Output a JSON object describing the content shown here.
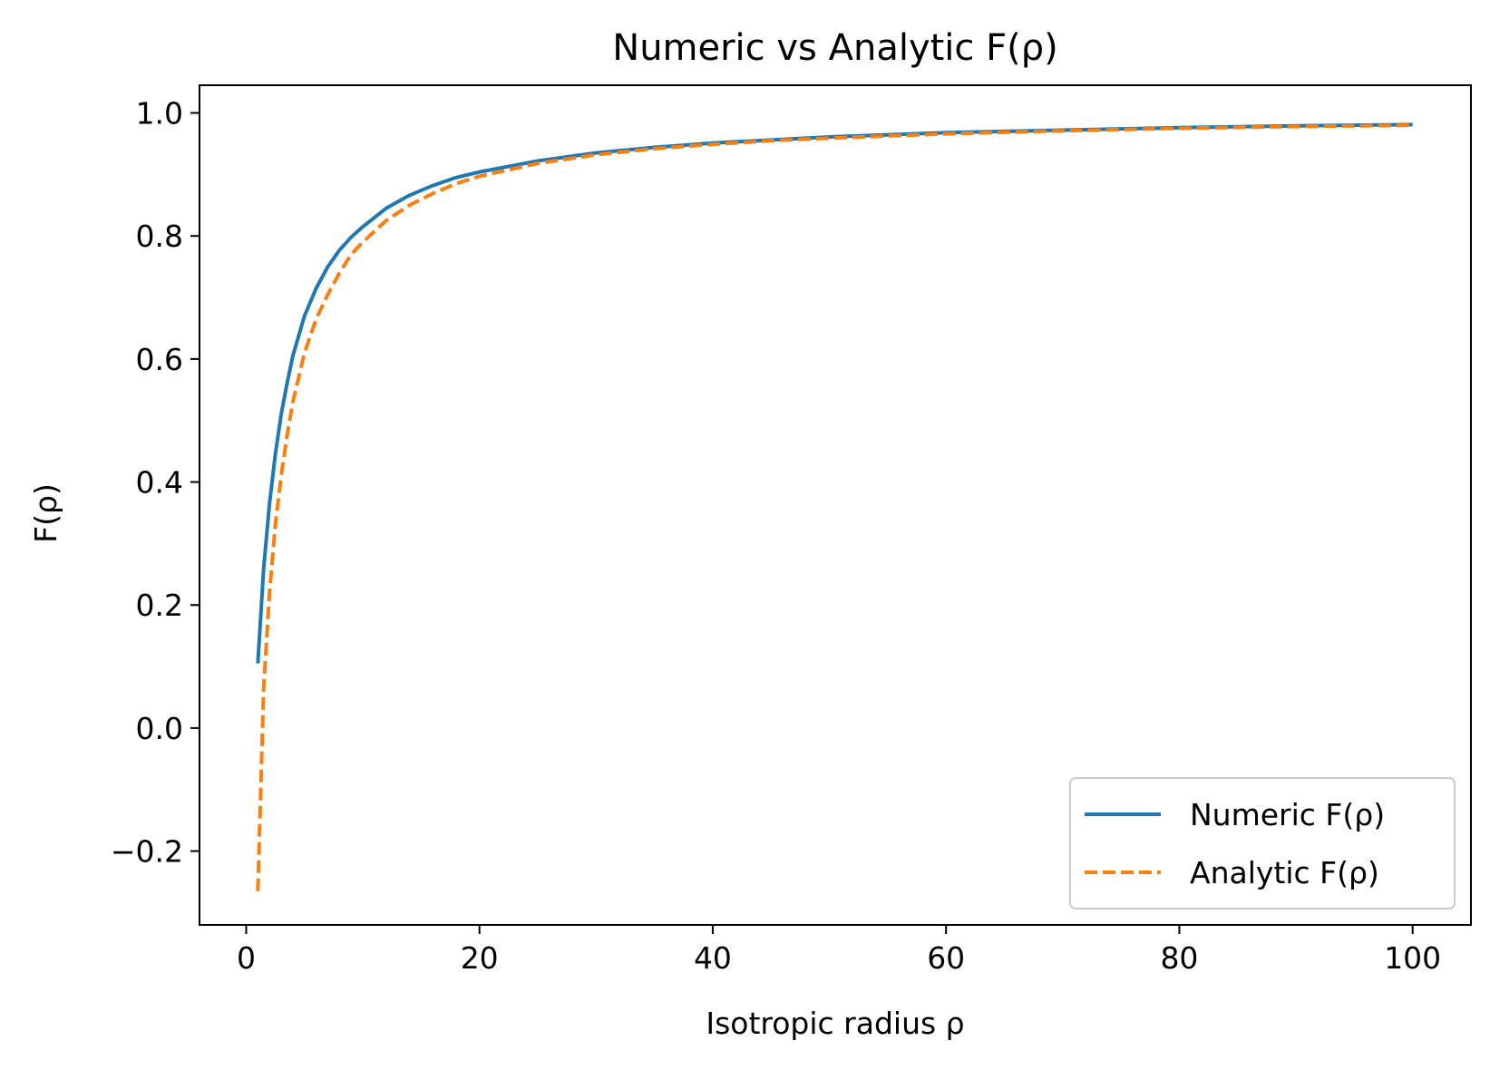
{
  "chart_data": {
    "type": "line",
    "title": "Numeric vs Analytic F(ρ)",
    "xlabel": "Isotropic radius ρ",
    "ylabel": "F(ρ)",
    "xlim": [
      -4,
      105
    ],
    "ylim": [
      -0.32,
      1.045
    ],
    "xticks": [
      {
        "value": 0,
        "label": "0"
      },
      {
        "value": 20,
        "label": "20"
      },
      {
        "value": 40,
        "label": "40"
      },
      {
        "value": 60,
        "label": "60"
      },
      {
        "value": 80,
        "label": "80"
      },
      {
        "value": 100,
        "label": "100"
      }
    ],
    "yticks": [
      {
        "value": -0.2,
        "label": "−0.2"
      },
      {
        "value": 0.0,
        "label": "0.0"
      },
      {
        "value": 0.2,
        "label": "0.2"
      },
      {
        "value": 0.4,
        "label": "0.4"
      },
      {
        "value": 0.6,
        "label": "0.6"
      },
      {
        "value": 0.8,
        "label": "0.8"
      },
      {
        "value": 1.0,
        "label": "1.0"
      }
    ],
    "grid": false,
    "legend_position": "lower-right",
    "series": [
      {
        "name": "Numeric F(ρ)",
        "color": "#1f77b4",
        "style": "solid",
        "x": [
          1,
          1.5,
          2,
          2.5,
          3,
          3.5,
          4,
          5,
          6,
          7,
          8,
          9,
          10,
          12,
          14,
          16,
          18,
          20,
          25,
          30,
          35,
          40,
          45,
          50,
          60,
          70,
          80,
          90,
          100
        ],
        "y": [
          0.105,
          0.26,
          0.365,
          0.445,
          0.51,
          0.56,
          0.605,
          0.67,
          0.715,
          0.75,
          0.777,
          0.798,
          0.815,
          0.845,
          0.866,
          0.882,
          0.895,
          0.904,
          0.922,
          0.935,
          0.944,
          0.951,
          0.956,
          0.961,
          0.968,
          0.972,
          0.976,
          0.979,
          0.981
        ]
      },
      {
        "name": "Analytic F(ρ)",
        "color": "#ff7f0e",
        "style": "dashed",
        "x": [
          1,
          1.5,
          2,
          2.5,
          3,
          3.5,
          4,
          5,
          6,
          7,
          8,
          9,
          10,
          12,
          14,
          16,
          18,
          20,
          25,
          30,
          35,
          40,
          45,
          50,
          60,
          70,
          80,
          90,
          100
        ],
        "y": [
          -0.265,
          0.065,
          0.22,
          0.33,
          0.41,
          0.475,
          0.53,
          0.61,
          0.665,
          0.705,
          0.74,
          0.77,
          0.79,
          0.825,
          0.85,
          0.869,
          0.885,
          0.897,
          0.918,
          0.932,
          0.942,
          0.949,
          0.955,
          0.959,
          0.966,
          0.971,
          0.975,
          0.978,
          0.98
        ]
      }
    ]
  }
}
